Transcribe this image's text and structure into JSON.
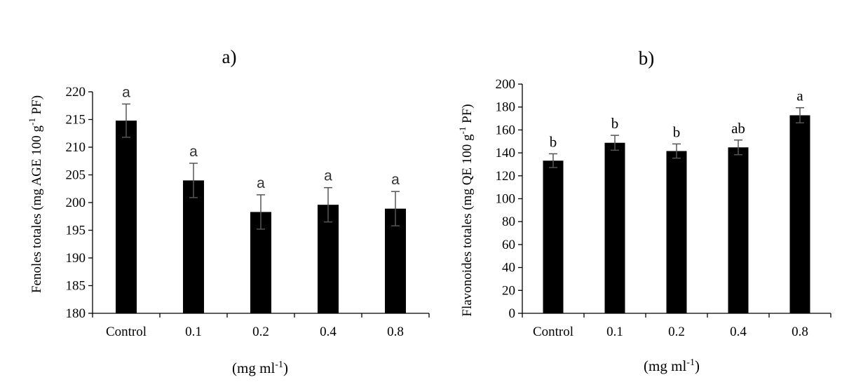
{
  "chart_data": [
    {
      "type": "bar",
      "panel_label": "a)",
      "categories": [
        "Control",
        "0.1",
        "0.2",
        "0.4",
        "0.8"
      ],
      "values": [
        214.8,
        204.0,
        198.3,
        199.6,
        198.9
      ],
      "errors": [
        3.0,
        3.1,
        3.1,
        3.1,
        3.1
      ],
      "significance": [
        "a",
        "a",
        "a",
        "a",
        "a"
      ],
      "ylabel_main": "Fenoles totales (mg AGE 100 g",
      "ylabel_sup": "-1",
      "ylabel_end": " PF)",
      "xlabel_main": "(mg ml",
      "xlabel_sup": "-1",
      "xlabel_end": ")",
      "ylim": [
        180,
        220
      ],
      "yticks": [
        180,
        185,
        190,
        195,
        200,
        205,
        210,
        215,
        220
      ],
      "bar_color": "#000000"
    },
    {
      "type": "bar",
      "panel_label": "b)",
      "categories": [
        "Control",
        "0.1",
        "0.2",
        "0.4",
        "0.8"
      ],
      "values": [
        133.2,
        148.8,
        141.6,
        144.8,
        172.8
      ],
      "errors": [
        6.0,
        6.5,
        6.2,
        6.4,
        6.6
      ],
      "significance": [
        "b",
        "b",
        "b",
        "ab",
        "a"
      ],
      "ylabel_main": "Flavonoides totales (mg QE 100 g",
      "ylabel_sup": "-1",
      "ylabel_end": " PF)",
      "xlabel_main": "(mg ml",
      "xlabel_sup": "-1",
      "xlabel_end": ")",
      "ylim": [
        0,
        200
      ],
      "yticks": [
        0,
        20,
        40,
        60,
        80,
        100,
        120,
        140,
        160,
        180,
        200
      ],
      "bar_color": "#000000"
    }
  ]
}
